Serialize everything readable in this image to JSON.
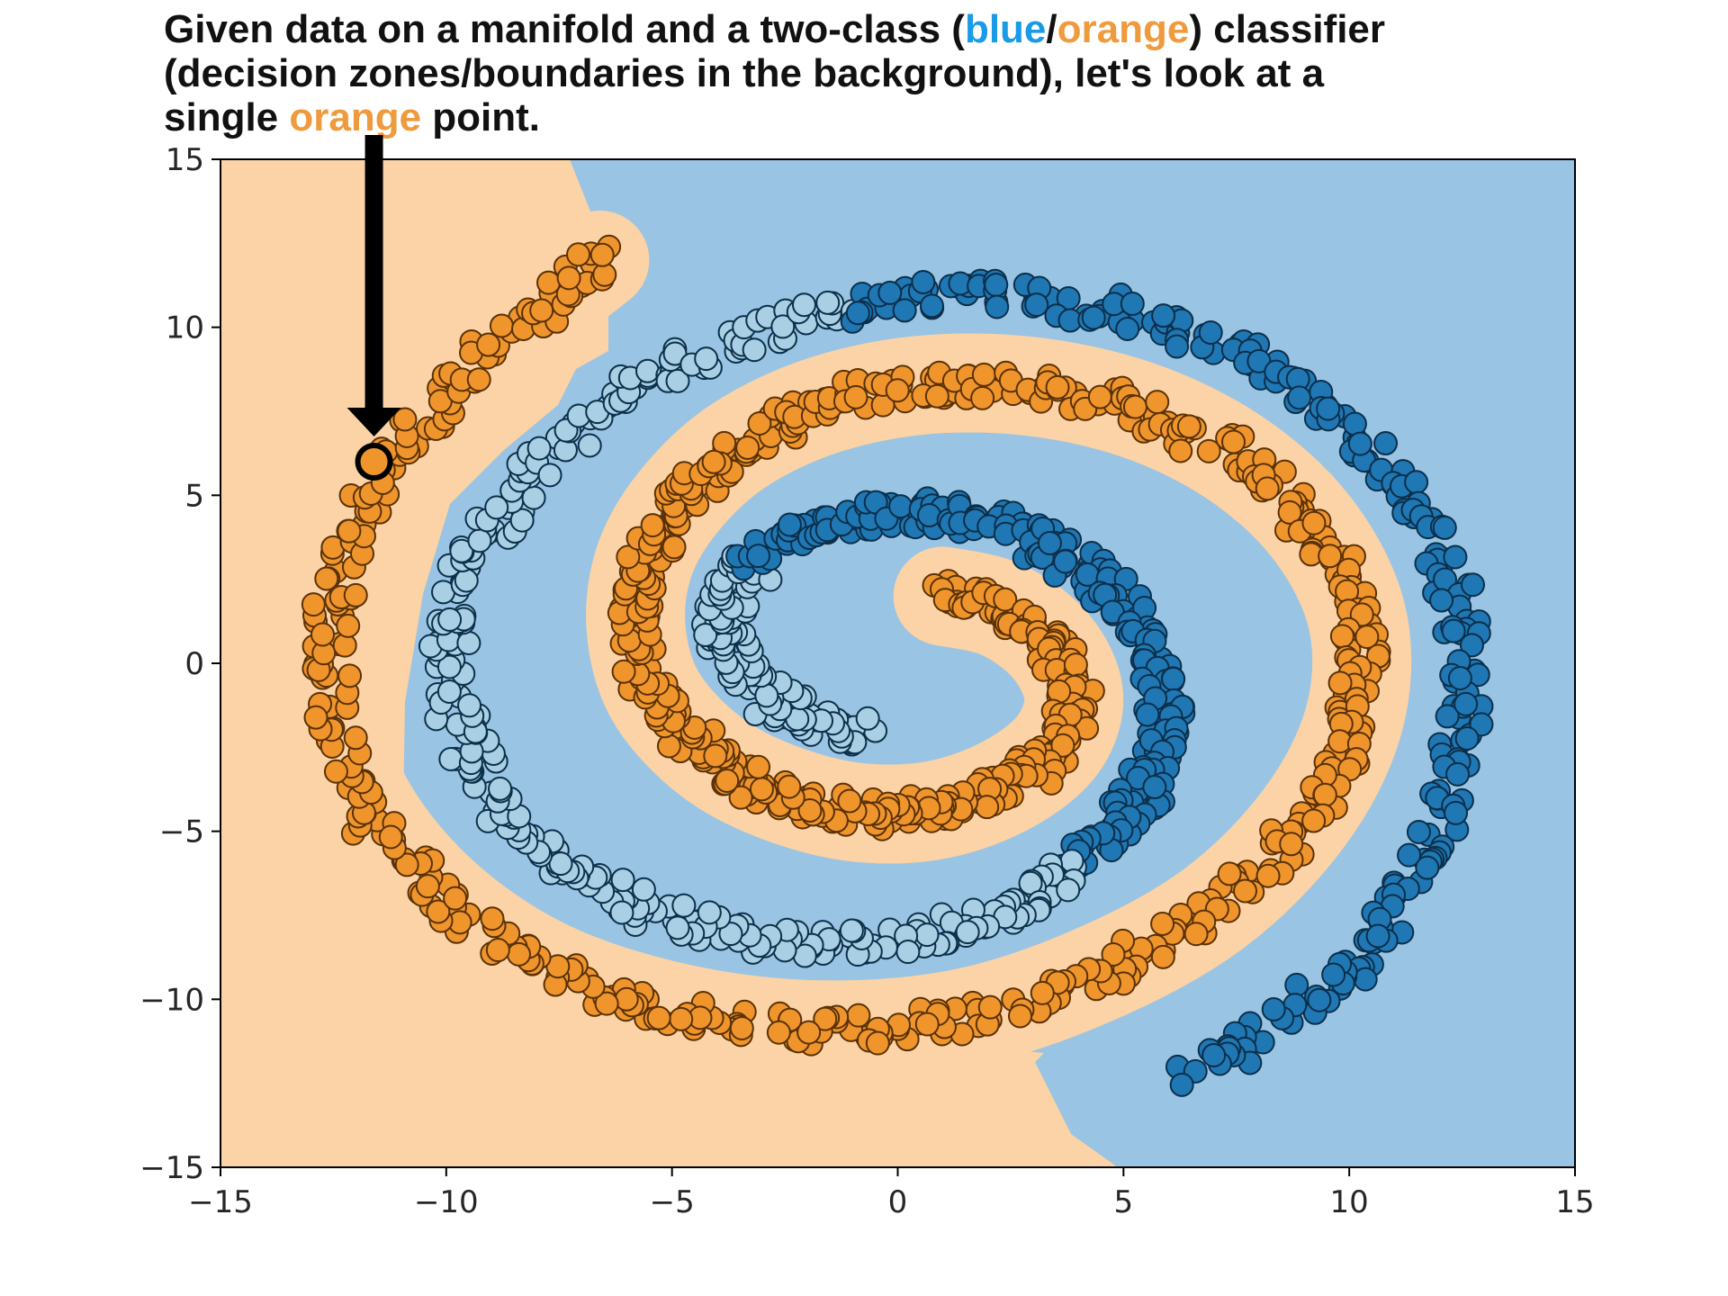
{
  "caption": {
    "line1_before": "Given data on a manifold and a two-class (",
    "blue_word": "blue",
    "slash": "/",
    "orange_word": "orange",
    "line1_after": ") classifier",
    "line2": "(decision zones/boundaries in the background), let's look at a",
    "line3_before": "single ",
    "orange_word_2": "orange",
    "line3_after": " point."
  },
  "colors": {
    "caption_blue": "#1a9be6",
    "caption_orange": "#ef9a3c",
    "zone_orange": "#fbd3a6",
    "zone_blue": "#9ac4e3",
    "point_orange": "#f0952c",
    "point_orange_edge": "#5a3208",
    "point_blue_dark": "#1f77b4",
    "point_blue_light": "#a8cfe4",
    "point_blue_edge": "#0c2f4a",
    "highlight_fill": "#f0952c",
    "highlight_edge": "#000000",
    "arrow": "#000000"
  },
  "chart_data": {
    "type": "scatter",
    "title": "",
    "xlabel": "",
    "ylabel": "",
    "xlim": [
      -15,
      15
    ],
    "ylim": [
      -15,
      15
    ],
    "xticks": [
      -15,
      -10,
      -5,
      0,
      5,
      10,
      15
    ],
    "yticks": [
      -15,
      -10,
      -5,
      0,
      5,
      10,
      15
    ],
    "xtick_labels": [
      "−15",
      "−10",
      "−5",
      "0",
      "5",
      "10",
      "15"
    ],
    "ytick_labels": [
      "−15",
      "−10",
      "−5",
      "0",
      "5",
      "10",
      "15"
    ],
    "grid": false,
    "legend": "none",
    "series": [
      {
        "class": "orange",
        "description_of_shape": "two-arm spiral",
        "x": [
          1.0,
          2.3,
          3.4,
          3.9,
          3.5,
          2.3,
          0.7,
          -1.1,
          -2.9,
          -4.3,
          -5.4,
          -5.8,
          -5.6,
          -4.8,
          -3.5,
          -1.6,
          0.7,
          3.2,
          5.6,
          7.7,
          9.3,
          10.2,
          10.1,
          9.0,
          7.0,
          4.3,
          1.3,
          -2.0,
          -5.2,
          -8.1,
          -10.5,
          -12.1,
          -12.6,
          -12.1,
          -10.6,
          -8.5,
          -6.6
        ],
        "y": [
          2.0,
          1.6,
          0.5,
          -1.0,
          -2.5,
          -3.7,
          -4.4,
          -4.4,
          -3.7,
          -2.6,
          -0.9,
          1.1,
          3.1,
          4.9,
          6.5,
          7.7,
          8.3,
          8.2,
          7.4,
          5.9,
          3.8,
          1.2,
          -1.7,
          -4.6,
          -7.3,
          -9.3,
          -10.6,
          -10.9,
          -10.3,
          -8.9,
          -6.5,
          -3.4,
          0.2,
          3.7,
          7.0,
          9.9,
          12.0
        ]
      },
      {
        "class": "blue",
        "description_of_shape": "two-arm spiral interleaved with orange",
        "x": [
          -0.9,
          -2.3,
          -3.3,
          -3.9,
          -3.5,
          -2.3,
          -0.8,
          1.1,
          3.0,
          4.4,
          5.4,
          5.9,
          5.6,
          4.8,
          3.4,
          1.4,
          -1.0,
          -3.4,
          -5.7,
          -7.7,
          -9.1,
          -9.9,
          -9.8,
          -8.7,
          -6.7,
          -4.3,
          -1.4,
          1.8,
          5.0,
          8.0,
          10.4,
          12.0,
          12.6,
          12.2,
          11.0,
          9.2,
          6.5
        ],
        "y": [
          -2.0,
          -1.5,
          -0.4,
          1.0,
          2.5,
          3.8,
          4.4,
          4.4,
          3.7,
          2.5,
          0.8,
          -1.2,
          -3.2,
          -5.0,
          -6.6,
          -7.8,
          -8.3,
          -8.2,
          -7.3,
          -5.8,
          -3.6,
          -0.9,
          2.0,
          4.7,
          7.3,
          9.2,
          10.5,
          11.0,
          10.4,
          8.9,
          6.5,
          3.3,
          -0.3,
          -3.9,
          -7.3,
          -10.0,
          -12.1
        ]
      }
    ],
    "highlighted_point": {
      "x": -11.6,
      "y": 6.0,
      "class": "orange"
    }
  }
}
